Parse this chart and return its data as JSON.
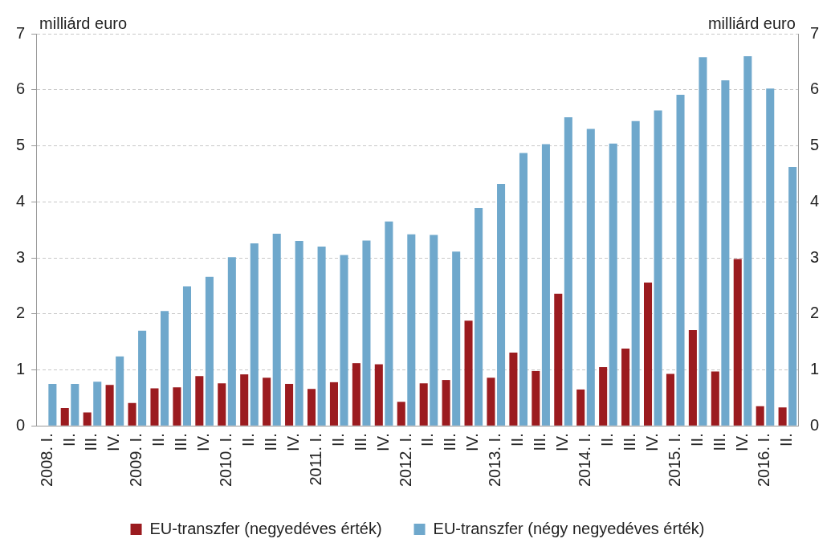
{
  "chart_data": {
    "type": "bar",
    "ylabel": "milliárd euro",
    "y2label": "milliárd euro",
    "categories": [
      "2008. I.",
      "II.",
      "III.",
      "IV.",
      "2009. I.",
      "II.",
      "III.",
      "IV.",
      "2010. I.",
      "II.",
      "III.",
      "IV.",
      "2011. I.",
      "II.",
      "III.",
      "IV.",
      "2012. I.",
      "II.",
      "III.",
      "IV.",
      "2013. I.",
      "II.",
      "III.",
      "IV.",
      "2014. I.",
      "II.",
      "III.",
      "IV.",
      "2015. I.",
      "II.",
      "III.",
      "IV.",
      "2016. I.",
      "II."
    ],
    "series": [
      {
        "name": "EU-transzfer (negyedéves érték)",
        "color": "#9b1b1f",
        "values": [
          null,
          0.32,
          0.24,
          0.73,
          0.41,
          0.67,
          0.69,
          0.89,
          0.76,
          0.92,
          0.86,
          0.75,
          0.66,
          0.78,
          1.12,
          1.1,
          0.43,
          0.76,
          0.82,
          1.88,
          0.86,
          1.31,
          0.98,
          2.36,
          0.65,
          1.05,
          1.38,
          2.56,
          0.93,
          1.71,
          0.97,
          2.98,
          0.35,
          0.33
        ]
      },
      {
        "name": "EU-transzfer (négy negyedéves érték)",
        "color": "#6fa8cc",
        "values": [
          0.75,
          0.75,
          0.79,
          1.24,
          1.7,
          2.05,
          2.49,
          2.66,
          3.01,
          3.26,
          3.43,
          3.3,
          3.2,
          3.05,
          3.31,
          3.65,
          3.42,
          3.41,
          3.11,
          3.89,
          4.32,
          4.87,
          5.03,
          5.51,
          5.3,
          5.04,
          5.44,
          5.63,
          5.91,
          6.58,
          6.17,
          6.6,
          6.02,
          4.62
        ]
      }
    ],
    "ylim": [
      0,
      7
    ],
    "yticks": [
      0,
      1,
      2,
      3,
      4,
      5,
      6,
      7
    ],
    "y2lim": [
      0,
      7
    ],
    "y2ticks": [
      0,
      1,
      2,
      3,
      4,
      5,
      6,
      7
    ],
    "grid": "y",
    "legend": "bottom"
  }
}
